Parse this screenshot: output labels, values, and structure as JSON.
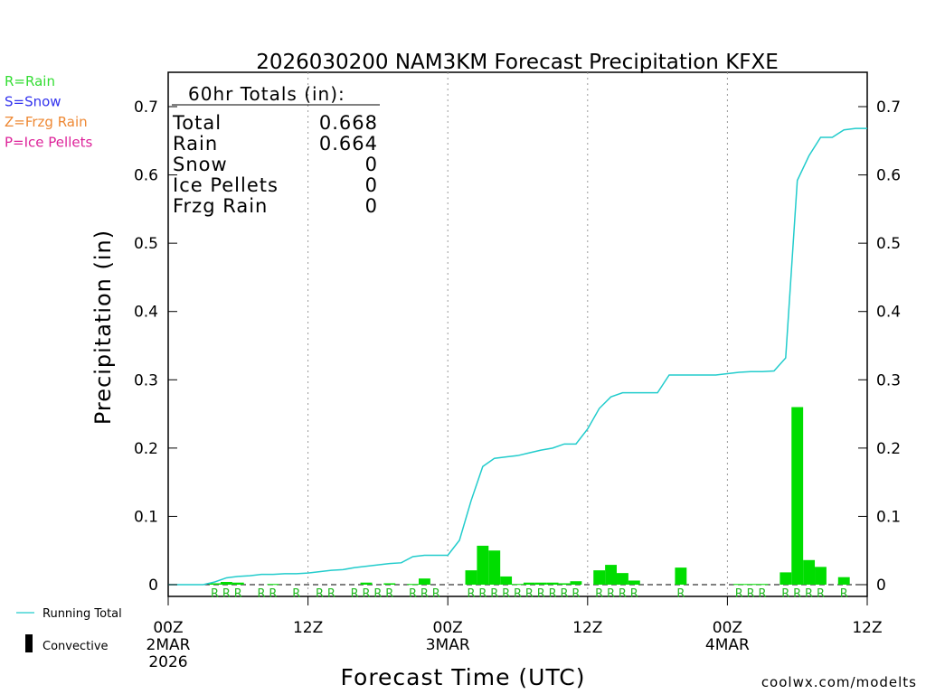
{
  "chart_data": {
    "type": "bar",
    "title": "2026030200 NAM3KM Forecast Precipitation KFXE",
    "xlabel": "Forecast Time (UTC)",
    "ylabel": "Precipitation (in)",
    "ylim": [
      0,
      0.72
    ],
    "yticks": [
      0,
      0.1,
      0.2,
      0.3,
      0.4,
      0.5,
      0.6,
      0.7
    ],
    "xlim_hours": [
      0,
      60
    ],
    "xticks": [
      {
        "hour": 0,
        "lines": [
          "00Z",
          "2MAR",
          "2026"
        ]
      },
      {
        "hour": 12,
        "lines": [
          "12Z"
        ]
      },
      {
        "hour": 24,
        "lines": [
          "00Z",
          "3MAR"
        ]
      },
      {
        "hour": 36,
        "lines": [
          "12Z"
        ]
      },
      {
        "hour": 48,
        "lines": [
          "00Z",
          "4MAR"
        ]
      },
      {
        "hour": 60,
        "lines": [
          "12Z"
        ]
      }
    ],
    "grid_hours": [
      12,
      24,
      36,
      48
    ],
    "totals_box": {
      "header": "60hr Totals (in):",
      "rows": [
        {
          "label": "Total",
          "value": "0.668"
        },
        {
          "label": "Rain",
          "value": "0.664"
        },
        {
          "label": "Snow",
          "value": "0"
        },
        {
          "label": "Ice Pellets",
          "value": "0"
        },
        {
          "label": "Frzg Rain",
          "value": "0"
        }
      ]
    },
    "ptype_legend": [
      {
        "text": "R=Rain",
        "color": "#33dd33"
      },
      {
        "text": "S=Snow",
        "color": "#3333ee"
      },
      {
        "text": "Z=Frzg Rain",
        "color": "#ee8833"
      },
      {
        "text": "P=Ice Pellets",
        "color": "#dd2299"
      }
    ],
    "bottom_legend": {
      "running_total": "Running Total",
      "convective": "Convective"
    },
    "colors": {
      "bars": "#00dd00",
      "running_total": "#22cccc",
      "rain_label": "#22bb22",
      "credit": "#cc2222"
    },
    "hourly_precip": [
      {
        "hour": 4,
        "value": 0.002
      },
      {
        "hour": 5,
        "value": 0.004
      },
      {
        "hour": 6,
        "value": 0.003
      },
      {
        "hour": 9,
        "value": 0.001
      },
      {
        "hour": 17,
        "value": 0.003
      },
      {
        "hour": 19,
        "value": 0.002
      },
      {
        "hour": 21,
        "value": 0.001
      },
      {
        "hour": 22,
        "value": 0.009
      },
      {
        "hour": 26,
        "value": 0.021
      },
      {
        "hour": 27,
        "value": 0.057
      },
      {
        "hour": 28,
        "value": 0.05
      },
      {
        "hour": 29,
        "value": 0.012
      },
      {
        "hour": 30,
        "value": 0.001
      },
      {
        "hour": 31,
        "value": 0.003
      },
      {
        "hour": 32,
        "value": 0.003
      },
      {
        "hour": 33,
        "value": 0.003
      },
      {
        "hour": 34,
        "value": 0.002
      },
      {
        "hour": 35,
        "value": 0.005
      },
      {
        "hour": 37,
        "value": 0.021
      },
      {
        "hour": 38,
        "value": 0.029
      },
      {
        "hour": 39,
        "value": 0.017
      },
      {
        "hour": 40,
        "value": 0.006
      },
      {
        "hour": 44,
        "value": 0.025
      },
      {
        "hour": 49,
        "value": 0.001
      },
      {
        "hour": 50,
        "value": 0.001
      },
      {
        "hour": 51,
        "value": 0.001
      },
      {
        "hour": 53,
        "value": 0.018
      },
      {
        "hour": 54,
        "value": 0.26
      },
      {
        "hour": 55,
        "value": 0.036
      },
      {
        "hour": 56,
        "value": 0.026
      },
      {
        "hour": 58,
        "value": 0.011
      }
    ],
    "running_total": {
      "hours": [
        0,
        1,
        2,
        3,
        4,
        5,
        6,
        7,
        8,
        9,
        10,
        11,
        12,
        13,
        14,
        15,
        16,
        17,
        18,
        19,
        20,
        21,
        22,
        23,
        24,
        25,
        26,
        27,
        28,
        29,
        30,
        31,
        32,
        33,
        34,
        35,
        36,
        37,
        38,
        39,
        40,
        41,
        42,
        43,
        44,
        45,
        46,
        47,
        48,
        49,
        50,
        51,
        52,
        53,
        54,
        55,
        56,
        57,
        58,
        59,
        60
      ],
      "values": [
        0,
        0,
        0,
        0,
        0.004,
        0.01,
        0.012,
        0.013,
        0.015,
        0.015,
        0.016,
        0.016,
        0.017,
        0.019,
        0.021,
        0.022,
        0.025,
        0.027,
        0.029,
        0.031,
        0.032,
        0.041,
        0.043,
        0.043,
        0.043,
        0.065,
        0.123,
        0.173,
        0.185,
        0.187,
        0.189,
        0.193,
        0.197,
        0.2,
        0.206,
        0.206,
        0.228,
        0.258,
        0.275,
        0.281,
        0.281,
        0.281,
        0.281,
        0.307,
        0.307,
        0.307,
        0.307,
        0.307,
        0.309,
        0.311,
        0.312,
        0.312,
        0.313,
        0.332,
        0.592,
        0.628,
        0.655,
        0.655,
        0.666,
        0.668,
        0.668
      ]
    },
    "ptype_marks": [
      {
        "hour": 4,
        "type": "R"
      },
      {
        "hour": 5,
        "type": "R"
      },
      {
        "hour": 6,
        "type": "R"
      },
      {
        "hour": 8,
        "type": "R"
      },
      {
        "hour": 9,
        "type": "R"
      },
      {
        "hour": 11,
        "type": "R"
      },
      {
        "hour": 13,
        "type": "R"
      },
      {
        "hour": 14,
        "type": "R"
      },
      {
        "hour": 16,
        "type": "R"
      },
      {
        "hour": 17,
        "type": "R"
      },
      {
        "hour": 18,
        "type": "R"
      },
      {
        "hour": 19,
        "type": "R"
      },
      {
        "hour": 21,
        "type": "R"
      },
      {
        "hour": 22,
        "type": "R"
      },
      {
        "hour": 23,
        "type": "R"
      },
      {
        "hour": 26,
        "type": "R"
      },
      {
        "hour": 27,
        "type": "R"
      },
      {
        "hour": 28,
        "type": "R"
      },
      {
        "hour": 29,
        "type": "R"
      },
      {
        "hour": 30,
        "type": "R"
      },
      {
        "hour": 31,
        "type": "R"
      },
      {
        "hour": 32,
        "type": "R"
      },
      {
        "hour": 33,
        "type": "R"
      },
      {
        "hour": 34,
        "type": "R"
      },
      {
        "hour": 35,
        "type": "R"
      },
      {
        "hour": 37,
        "type": "R"
      },
      {
        "hour": 38,
        "type": "R"
      },
      {
        "hour": 39,
        "type": "R"
      },
      {
        "hour": 40,
        "type": "R"
      },
      {
        "hour": 44,
        "type": "R"
      },
      {
        "hour": 49,
        "type": "R"
      },
      {
        "hour": 50,
        "type": "R"
      },
      {
        "hour": 51,
        "type": "R"
      },
      {
        "hour": 53,
        "type": "R"
      },
      {
        "hour": 54,
        "type": "R"
      },
      {
        "hour": 55,
        "type": "R"
      },
      {
        "hour": 56,
        "type": "R"
      },
      {
        "hour": 58,
        "type": "R"
      }
    ],
    "credit": "coolwx.com/modelts"
  }
}
